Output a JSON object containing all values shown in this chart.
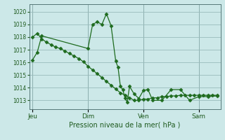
{
  "background_color": "#cce8e8",
  "plot_bg_color": "#cce8e8",
  "grid_color": "#99bbbb",
  "line_color": "#1e6b1e",
  "marker_color": "#1e6b1e",
  "ylabel_ticks": [
    1013,
    1014,
    1015,
    1016,
    1017,
    1018,
    1019,
    1020
  ],
  "ylim": [
    1012.3,
    1020.6
  ],
  "xlabel": "Pression niveau de la mer( hPa )",
  "day_labels": [
    "Jeu",
    "Dim",
    "Ven",
    "Sam"
  ],
  "day_positions": [
    0.0,
    0.333,
    0.667,
    1.0
  ],
  "xlim": [
    -0.02,
    1.13
  ],
  "series1_x": [
    0.0,
    0.028,
    0.055,
    0.333,
    0.361,
    0.389,
    0.417,
    0.444,
    0.472,
    0.5,
    0.514,
    0.528,
    0.542,
    0.556,
    0.569,
    0.583,
    0.611,
    0.639,
    0.667,
    0.694,
    0.722,
    0.778,
    0.833,
    0.889,
    0.944,
    1.0,
    1.056,
    1.111
  ],
  "series1_y": [
    1016.2,
    1016.8,
    1018.1,
    1017.1,
    1019.0,
    1019.2,
    1019.0,
    1019.85,
    1018.9,
    1016.1,
    1015.6,
    1014.1,
    1013.85,
    1013.2,
    1012.85,
    1014.1,
    1013.5,
    1013.15,
    1013.8,
    1013.85,
    1013.0,
    1013.0,
    1013.85,
    1013.85,
    1013.0,
    1013.3,
    1013.3,
    1013.35
  ],
  "series2_x": [
    0.0,
    0.028,
    0.055,
    0.083,
    0.111,
    0.139,
    0.167,
    0.194,
    0.222,
    0.25,
    0.278,
    0.306,
    0.333,
    0.361,
    0.389,
    0.417,
    0.444,
    0.472,
    0.5,
    0.528,
    0.556,
    0.583,
    0.611,
    0.639,
    0.667,
    0.694,
    0.722,
    0.75,
    0.778,
    0.806,
    0.833,
    0.861,
    0.889,
    0.917,
    0.944,
    0.972,
    1.0,
    1.028,
    1.056,
    1.083,
    1.111
  ],
  "series2_y": [
    1018.0,
    1018.3,
    1017.85,
    1017.6,
    1017.4,
    1017.2,
    1017.1,
    1016.9,
    1016.7,
    1016.5,
    1016.3,
    1016.05,
    1015.7,
    1015.4,
    1015.1,
    1014.8,
    1014.5,
    1014.2,
    1013.9,
    1013.6,
    1013.4,
    1013.2,
    1013.0,
    1013.0,
    1013.1,
    1013.1,
    1013.2,
    1013.2,
    1013.3,
    1013.3,
    1013.35,
    1013.35,
    1013.4,
    1013.4,
    1013.4,
    1013.4,
    1013.4,
    1013.4,
    1013.4,
    1013.4,
    1013.4
  ]
}
